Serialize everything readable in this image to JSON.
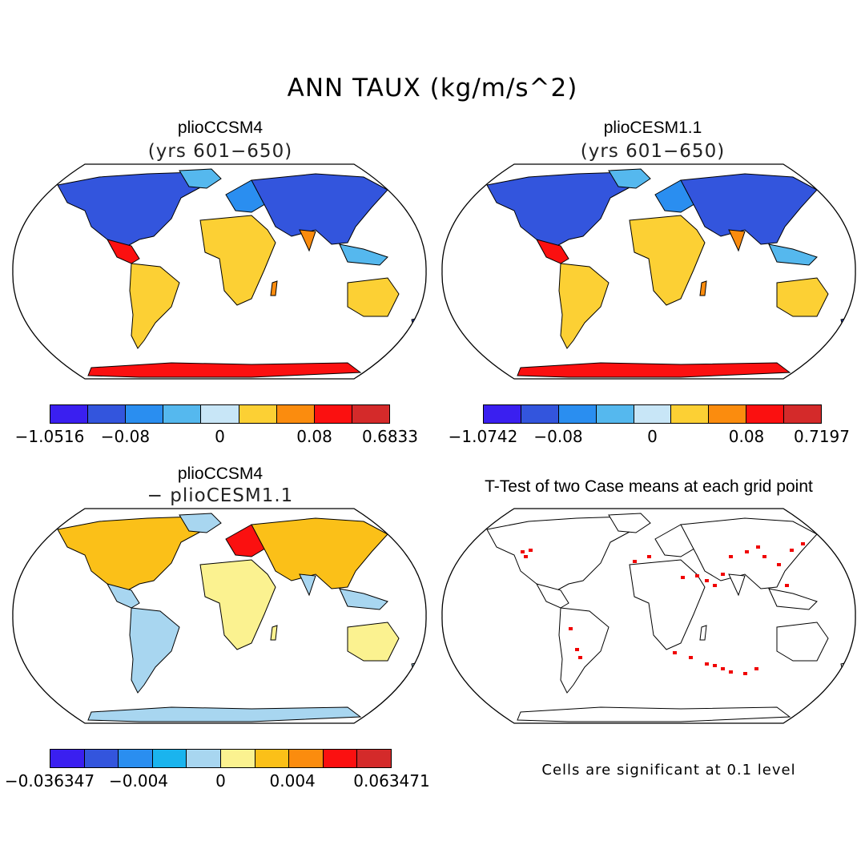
{
  "title": "ANN TAUX (kg/m/s^2)",
  "panels": {
    "p1": {
      "title": "plioCCSM4",
      "subtitle": "(yrs 601−650)",
      "colorbar": {
        "labels": [
          "−1.0516",
          "−0.08",
          "0",
          "0.08",
          "0.6833"
        ],
        "colors": [
          "#3a1ff0",
          "#3355dd",
          "#2a8ef0",
          "#55b8ee",
          "#c8e6f7",
          "#fcd034",
          "#fb8c0e",
          "#fb1010",
          "#d42a2a"
        ]
      }
    },
    "p2": {
      "title": "plioCESM1.1",
      "subtitle": "(yrs 601−650)",
      "colorbar": {
        "labels": [
          "−1.0742",
          "−0.08",
          "0",
          "0.08",
          "0.7197"
        ],
        "colors": [
          "#3a1ff0",
          "#3355dd",
          "#2a8ef0",
          "#55b8ee",
          "#c8e6f7",
          "#fcd034",
          "#fb8c0e",
          "#fb1010",
          "#d42a2a"
        ]
      }
    },
    "p3": {
      "title": "plioCCSM4",
      "subtitle": "− plioCESM1.1",
      "colorbar": {
        "labels": [
          "−0.036347",
          "−0.004",
          "0",
          "0.004",
          "0.063471"
        ],
        "colors": [
          "#3a1ff0",
          "#3355dd",
          "#2a8ef0",
          "#1ab4ee",
          "#a8d6f0",
          "#fbf290",
          "#fbc018",
          "#fb8c0e",
          "#fb1010",
          "#d42a2a"
        ]
      }
    },
    "p4": {
      "title": "T-Test of two Case means at each grid point",
      "note": "Cells are significant at 0.1 level",
      "sig_color": "#f00000"
    }
  }
}
